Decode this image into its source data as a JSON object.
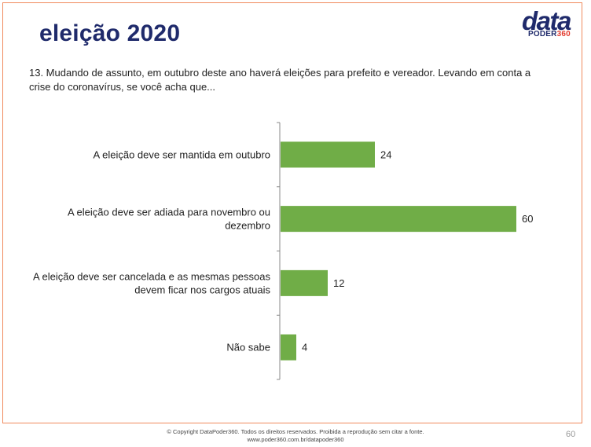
{
  "slide": {
    "title": "eleição 2020",
    "question": "13. Mudando de assunto, em outubro deste ano haverá eleições para prefeito e vereador. Levando em conta a crise do coronavírus, se você acha que...",
    "page_number": "60"
  },
  "logo": {
    "word": "data",
    "brand_poder": "PODER",
    "brand_360": "360"
  },
  "footer": {
    "copyright": "© Copyright DataPoder360. Todos os direitos reservados. Proibida a reprodução sem citar a fonte.",
    "url": "www.poder360.com.br/datapoder360"
  },
  "colors": {
    "bar": "#70ad47",
    "title": "#1f2a6b",
    "frame": "#f08a5d",
    "accent": "#e23b2f"
  },
  "chart_data": {
    "type": "bar",
    "orientation": "horizontal",
    "categories": [
      "A eleição deve ser mantida em outubro",
      "A eleição deve ser adiada para novembro ou dezembro",
      "A eleição deve ser cancelada e as mesmas pessoas devem ficar nos cargos atuais",
      "Não sabe"
    ],
    "category_lines": [
      [
        "A eleição deve ser mantida em outubro"
      ],
      [
        "A eleição deve ser adiada para novembro ou",
        "dezembro"
      ],
      [
        "A eleição deve ser cancelada e as mesmas pessoas",
        "devem ficar nos cargos atuais"
      ],
      [
        "Não sabe"
      ]
    ],
    "values": [
      24,
      60,
      12,
      4
    ],
    "xlim": [
      0,
      60
    ],
    "grid": false,
    "legend": "none"
  }
}
